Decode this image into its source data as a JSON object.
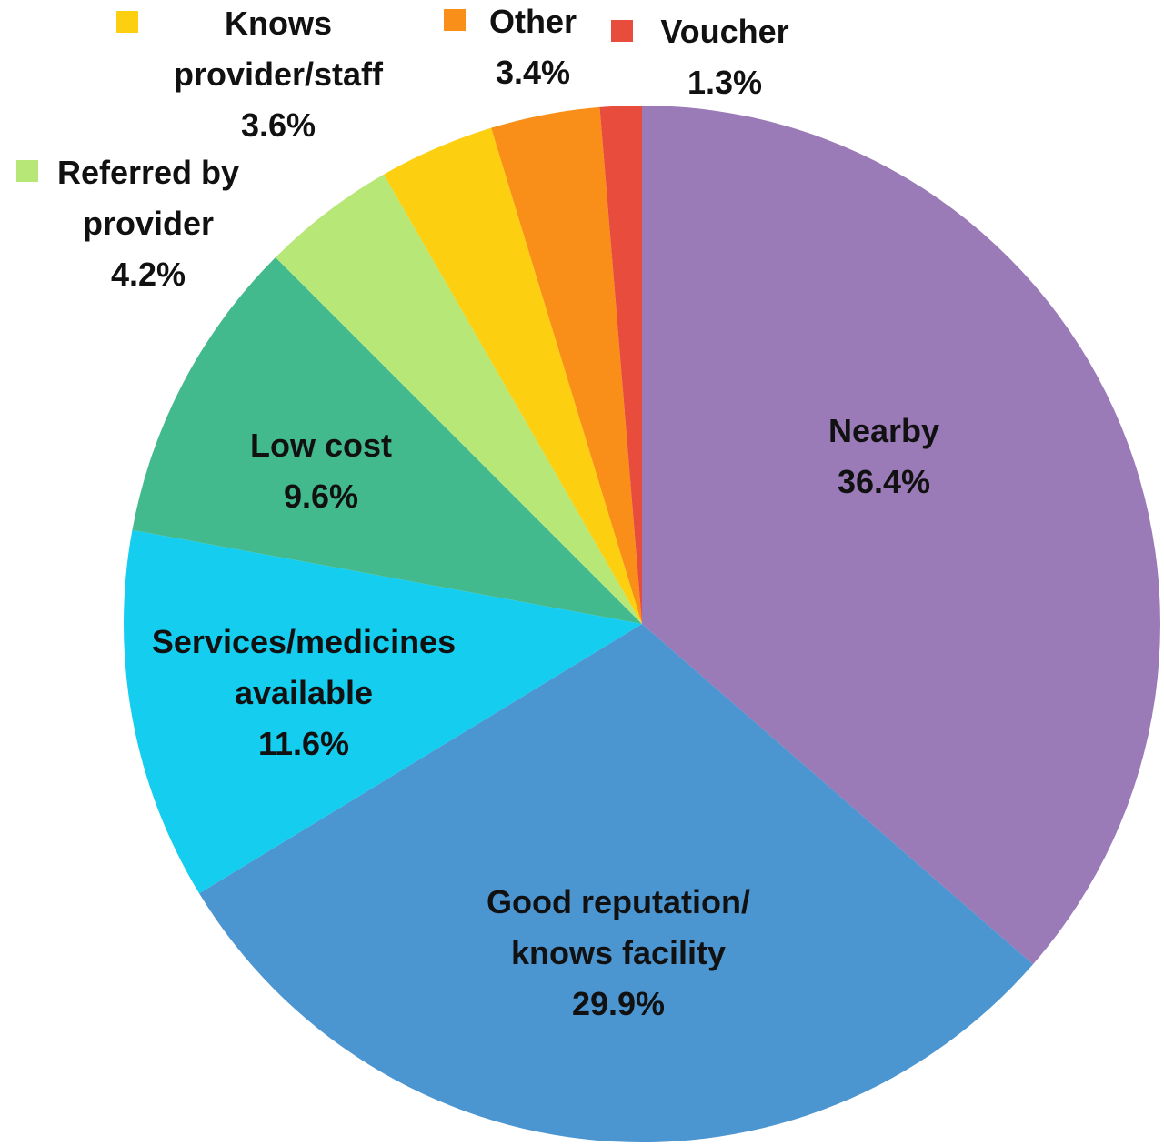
{
  "chart_data": {
    "type": "pie",
    "title": "",
    "start_angle_deg": 0,
    "direction": "clockwise",
    "legend": "none",
    "slices": [
      {
        "label": [
          "Nearby"
        ],
        "value": 36.4,
        "value_label": "36.4%",
        "color": "#9a7ab7"
      },
      {
        "label": [
          "Good reputation/",
          "knows facility"
        ],
        "value": 29.9,
        "value_label": "29.9%",
        "color": "#4b95d1"
      },
      {
        "label": [
          "Services/medicines",
          "available"
        ],
        "value": 11.6,
        "value_label": "11.6%",
        "color": "#15cdef"
      },
      {
        "label": [
          "Low cost"
        ],
        "value": 9.6,
        "value_label": "9.6%",
        "color": "#43b98e"
      },
      {
        "label": [
          "Referred by",
          "provider"
        ],
        "value": 4.2,
        "value_label": "4.2%",
        "color": "#b7e777"
      },
      {
        "label": [
          "Knows",
          "provider/staff"
        ],
        "value": 3.6,
        "value_label": "3.6%",
        "color": "#fccf10"
      },
      {
        "label": [
          "Other"
        ],
        "value": 3.4,
        "value_label": "3.4%",
        "color": "#f98e18"
      },
      {
        "label": [
          "Voucher"
        ],
        "value": 1.3,
        "value_label": "1.3%",
        "color": "#e84c3d"
      }
    ]
  }
}
